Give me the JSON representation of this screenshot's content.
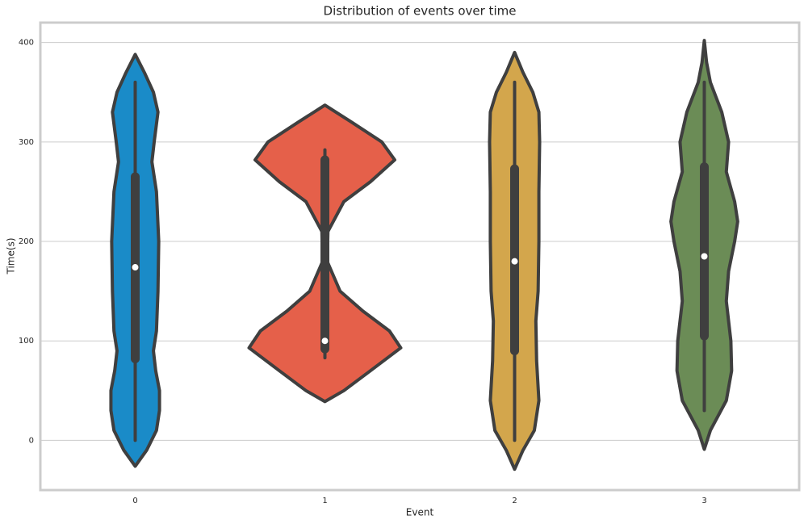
{
  "chart_data": {
    "type": "violin",
    "title": "Distribution of events over time",
    "x_label": "Event",
    "y_label": "Time(s)",
    "categories": [
      "0",
      "1",
      "2",
      "3"
    ],
    "ylim": [
      -50,
      420
    ],
    "yticks": [
      0,
      100,
      200,
      300,
      400
    ],
    "grid": true,
    "outline_color": "#3f3f3f",
    "series": [
      {
        "color": "#1a8bc8",
        "kde_y": [
          -26,
          -10,
          10,
          30,
          50,
          70,
          90,
          110,
          150,
          200,
          250,
          280,
          300,
          330,
          350,
          370,
          388
        ],
        "kde_width": [
          0,
          0.15,
          0.28,
          0.32,
          0.32,
          0.27,
          0.24,
          0.28,
          0.3,
          0.31,
          0.28,
          0.22,
          0.25,
          0.3,
          0.24,
          0.12,
          0
        ],
        "q1": 82,
        "q3": 265,
        "median": 174,
        "whisker_low": 0,
        "whisker_high": 360
      },
      {
        "color": "#e5604a",
        "kde_y": [
          39,
          50,
          70,
          93,
          110,
          130,
          150,
          180,
          210,
          240,
          260,
          282,
          300,
          320,
          337
        ],
        "kde_width": [
          0,
          0.25,
          0.6,
          1.0,
          0.85,
          0.5,
          0.2,
          0.03,
          0.04,
          0.25,
          0.6,
          0.92,
          0.75,
          0.35,
          0
        ],
        "q1": 92,
        "q3": 282,
        "median": 100,
        "whisker_low": 83,
        "whisker_high": 292
      },
      {
        "color": "#d3a64c",
        "kde_y": [
          -29,
          -10,
          10,
          40,
          80,
          120,
          150,
          200,
          250,
          300,
          330,
          350,
          370,
          390
        ],
        "kde_width": [
          0,
          0.11,
          0.26,
          0.32,
          0.29,
          0.28,
          0.31,
          0.32,
          0.32,
          0.33,
          0.32,
          0.24,
          0.11,
          0
        ],
        "q1": 90,
        "q3": 273,
        "median": 180,
        "whisker_low": 0,
        "whisker_high": 360
      },
      {
        "color": "#6b8c56",
        "kde_y": [
          -9,
          10,
          40,
          70,
          100,
          140,
          170,
          200,
          220,
          240,
          270,
          300,
          330,
          360,
          380,
          402
        ],
        "kde_width": [
          0,
          0.08,
          0.29,
          0.36,
          0.35,
          0.29,
          0.32,
          0.4,
          0.44,
          0.4,
          0.29,
          0.32,
          0.23,
          0.08,
          0.03,
          0
        ],
        "q1": 105,
        "q3": 275,
        "median": 185,
        "whisker_low": 30,
        "whisker_high": 360
      }
    ]
  }
}
